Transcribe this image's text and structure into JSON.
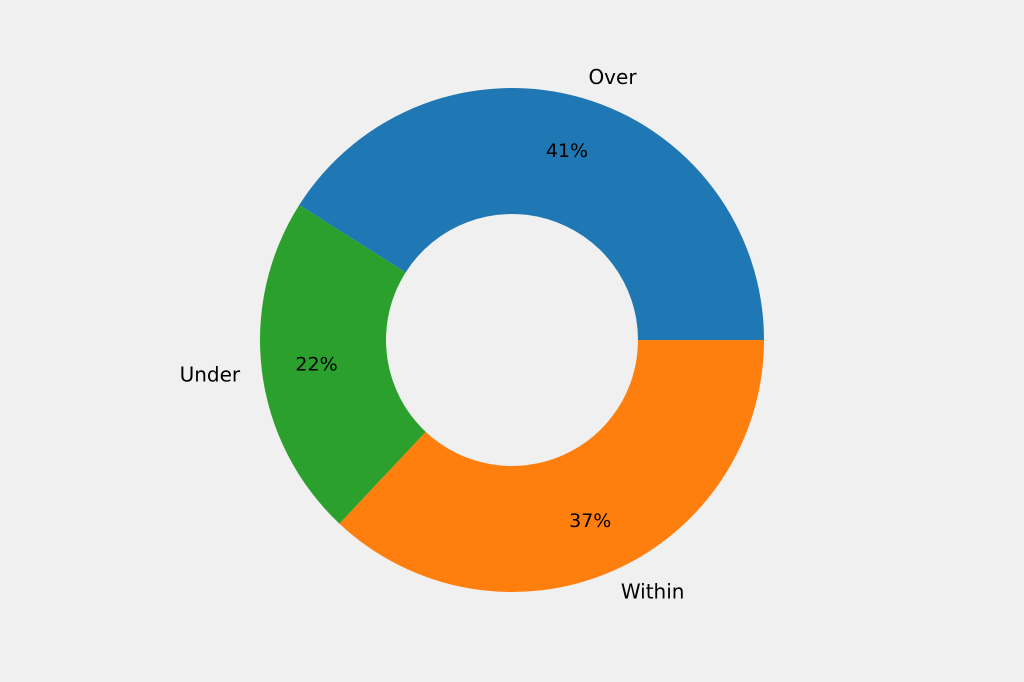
{
  "chart_data": {
    "type": "pie",
    "variant": "donut",
    "title": "",
    "categories": [
      "Over",
      "Under",
      "Within"
    ],
    "values": [
      41,
      22,
      37
    ],
    "value_labels": [
      "41%",
      "22%",
      "37%"
    ],
    "colors": [
      "#1f77b4",
      "#2ca02c",
      "#ff7f0e"
    ],
    "legend": "none"
  },
  "colors": {
    "background": "#f0f0f0"
  }
}
